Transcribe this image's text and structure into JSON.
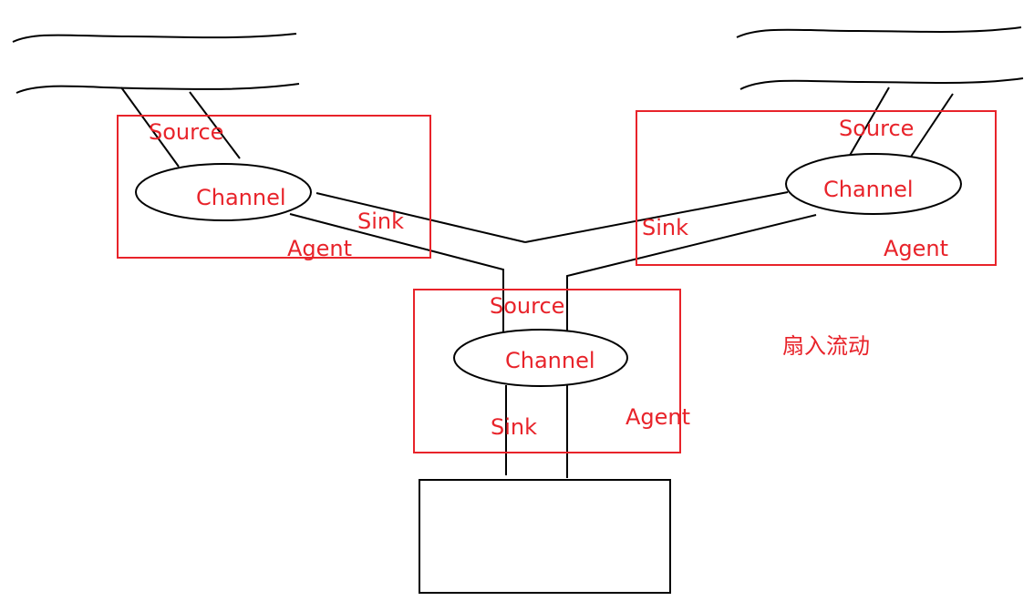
{
  "colors": {
    "red": "#e8232a",
    "black": "#000000"
  },
  "agents": [
    {
      "id": "left",
      "source": "Source",
      "channel": "Channel",
      "sink": "Sink",
      "agent": "Agent"
    },
    {
      "id": "right",
      "source": "Source",
      "channel": "Channel",
      "sink": "Sink",
      "agent": "Agent"
    },
    {
      "id": "center",
      "source": "Source",
      "channel": "Channel",
      "sink": "Sink",
      "agent": "Agent"
    }
  ],
  "caption": "扇入流动"
}
